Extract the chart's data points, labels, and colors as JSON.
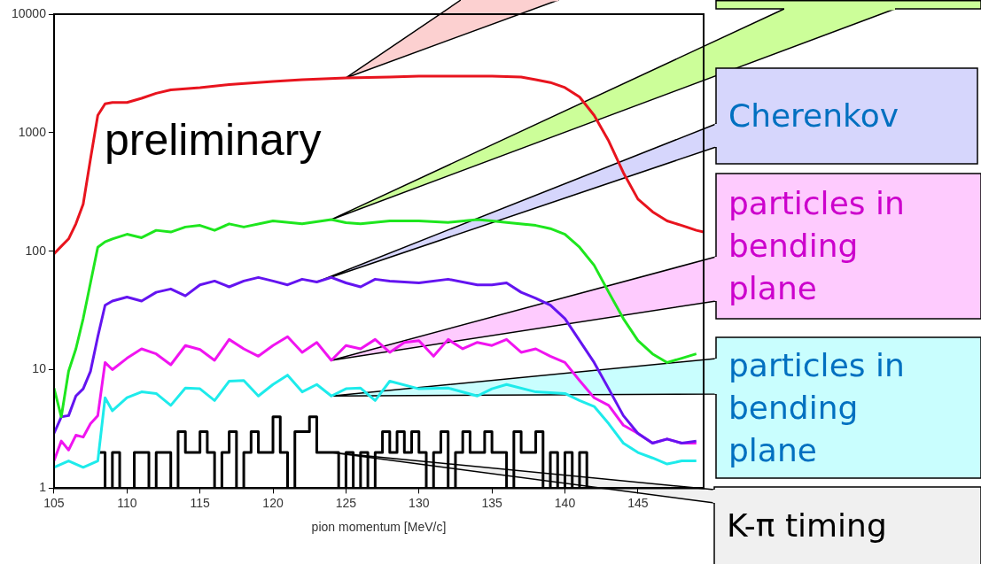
{
  "chart_data": {
    "type": "line",
    "xlabel": "pion momentum [MeV/c]",
    "log": "y",
    "grid": false,
    "legend": false,
    "marker": "none",
    "xlim": [
      105,
      149.5
    ],
    "xticks": [
      105,
      110,
      115,
      120,
      125,
      130,
      135,
      140,
      145
    ],
    "ylim": [
      1,
      10000
    ],
    "yticks": [
      1,
      10,
      100,
      1000,
      10000
    ],
    "annotations": [
      "preliminary"
    ],
    "series": [
      {
        "color": "#e8141e",
        "x": [
          105,
          105.5,
          106,
          106.5,
          107,
          107.5,
          108,
          108.5,
          109,
          110,
          111,
          112,
          113,
          114,
          115,
          117,
          120,
          122,
          125,
          128,
          130,
          133,
          135,
          137,
          138,
          139,
          140,
          141,
          142,
          143,
          144,
          145,
          146,
          147,
          148,
          149,
          149.5
        ],
        "values": [
          95,
          110,
          127,
          170,
          250,
          600,
          1400,
          1750,
          1800,
          1800,
          1950,
          2150,
          2300,
          2350,
          2400,
          2550,
          2700,
          2800,
          2900,
          2950,
          3000,
          3000,
          3000,
          2950,
          2800,
          2650,
          2400,
          2000,
          1400,
          850,
          460,
          275,
          215,
          180,
          165,
          150,
          145
        ]
      },
      {
        "color": "#1ee61e",
        "x": [
          105,
          105.5,
          106,
          106.5,
          107,
          107.5,
          108,
          108.5,
          109,
          110,
          111,
          112,
          113,
          114,
          115,
          116,
          117,
          118,
          120,
          122,
          124,
          125,
          126,
          128,
          130,
          132,
          134,
          135,
          136,
          138,
          139,
          140,
          141,
          142,
          143,
          144,
          145,
          146,
          147,
          148,
          149
        ],
        "values": [
          7,
          4,
          9.7,
          15,
          27,
          54,
          108,
          120,
          127,
          139,
          130,
          150,
          145,
          160,
          165,
          150,
          170,
          160,
          180,
          170,
          185,
          174,
          170,
          180,
          180,
          175,
          185,
          180,
          175,
          165,
          155,
          139,
          108,
          76,
          45,
          27,
          17.6,
          13.6,
          11.5,
          12.5,
          13.6
        ]
      },
      {
        "name": "Cherenkov",
        "color": "#6414f0",
        "x": [
          105,
          105.5,
          106,
          106.5,
          107,
          107.5,
          108,
          108.5,
          109,
          110,
          111,
          112,
          113,
          114,
          115,
          116,
          117,
          118,
          119,
          120,
          121,
          122,
          123,
          124,
          125,
          126,
          127,
          128,
          130,
          132,
          134,
          135,
          136,
          137,
          138,
          139,
          140,
          141,
          142,
          143,
          144,
          145,
          146,
          147,
          148,
          149
        ],
        "values": [
          2.9,
          4,
          4.1,
          6,
          6.9,
          9.7,
          19,
          35,
          38,
          41,
          38,
          45,
          48,
          42,
          52,
          56,
          50,
          56,
          60,
          56,
          52,
          58,
          55,
          60,
          54,
          50,
          58,
          56,
          54,
          58,
          52,
          52,
          54,
          45,
          40,
          35,
          27,
          17.6,
          11.5,
          6.9,
          4.1,
          2.9,
          2.4,
          2.6,
          2.4,
          2.5
        ]
      },
      {
        "name": "particles in bending plane",
        "color": "#f014f0",
        "x": [
          105,
          105.5,
          106,
          106.5,
          107,
          107.5,
          108,
          108.5,
          109,
          110,
          111,
          112,
          113,
          114,
          115,
          116,
          117,
          118,
          119,
          120,
          121,
          122,
          123,
          124,
          125,
          126,
          127,
          128,
          129,
          130,
          131,
          132,
          133,
          134,
          135,
          136,
          137,
          138,
          139,
          140,
          141,
          142,
          143,
          144,
          145,
          146,
          147,
          148,
          149
        ],
        "values": [
          1.7,
          2.5,
          2.1,
          2.8,
          2.7,
          3.5,
          4.1,
          11.5,
          10,
          12.5,
          15,
          13.6,
          11,
          16,
          14.8,
          12,
          18,
          15,
          13,
          16,
          19,
          14,
          17,
          12,
          16,
          15,
          18,
          14,
          17,
          17.6,
          13,
          18,
          15,
          17,
          16,
          18,
          14,
          15,
          13,
          11.5,
          8.1,
          5.8,
          5,
          3.4,
          2.9,
          2.4,
          2.6,
          2.4,
          2.4
        ]
      },
      {
        "name": "particles in bending plane",
        "color": "#1eebeb",
        "x": [
          105,
          106,
          107,
          108,
          108.5,
          109,
          110,
          111,
          112,
          113,
          114,
          115,
          116,
          117,
          118,
          119,
          120,
          121,
          122,
          123,
          124,
          125,
          126,
          127,
          128,
          130,
          132,
          134,
          135,
          136,
          138,
          140,
          141,
          142,
          143,
          144,
          145,
          146,
          147,
          148,
          149
        ],
        "values": [
          1.5,
          1.7,
          1.5,
          1.7,
          5.8,
          4.5,
          5.8,
          6.5,
          6.3,
          5,
          7,
          6.9,
          5.5,
          8,
          8.1,
          6,
          7.5,
          9,
          6.5,
          7.5,
          6,
          6.9,
          7,
          5.5,
          8,
          6.9,
          7,
          6,
          6.9,
          7.5,
          6.5,
          6.3,
          5.5,
          4.9,
          3.5,
          2.4,
          2,
          1.8,
          1.6,
          1.7,
          1.7
        ]
      },
      {
        "name": "K-π timing",
        "type": "step",
        "color": "#000000",
        "x": [
          108,
          108.5,
          109,
          109.5,
          110,
          110.5,
          111,
          111.5,
          112,
          112.5,
          113,
          113.5,
          114,
          114.5,
          115,
          115.5,
          116,
          116.5,
          117,
          117.5,
          118,
          118.5,
          119,
          119.5,
          120,
          120.5,
          121,
          121.5,
          122,
          122.5,
          123,
          123.5,
          124,
          124.5,
          125,
          125.5,
          126,
          126.5,
          127,
          127.5,
          128,
          128.5,
          129,
          129.5,
          130,
          130.5,
          131,
          131.5,
          132,
          132.5,
          133,
          133.5,
          134,
          134.5,
          135,
          135.5,
          136,
          136.5,
          137,
          137.5,
          138,
          138.5,
          139,
          139.5,
          140,
          140.5,
          141,
          141.5,
          142
        ],
        "values": [
          2,
          1,
          2,
          1,
          1,
          2,
          2,
          1,
          2,
          2,
          1,
          3,
          2,
          2,
          3,
          2,
          1,
          2,
          3,
          1,
          2,
          3,
          2,
          2,
          4,
          2,
          1,
          3,
          3,
          4,
          2,
          2,
          2,
          1,
          2,
          1,
          2,
          1,
          2,
          3,
          2,
          3,
          2,
          3,
          2,
          1,
          2,
          3,
          1,
          2,
          3,
          2,
          2,
          3,
          2,
          2,
          1,
          3,
          2,
          2,
          3,
          1,
          2,
          1,
          2,
          1,
          2,
          1,
          1
        ]
      }
    ]
  }
}
